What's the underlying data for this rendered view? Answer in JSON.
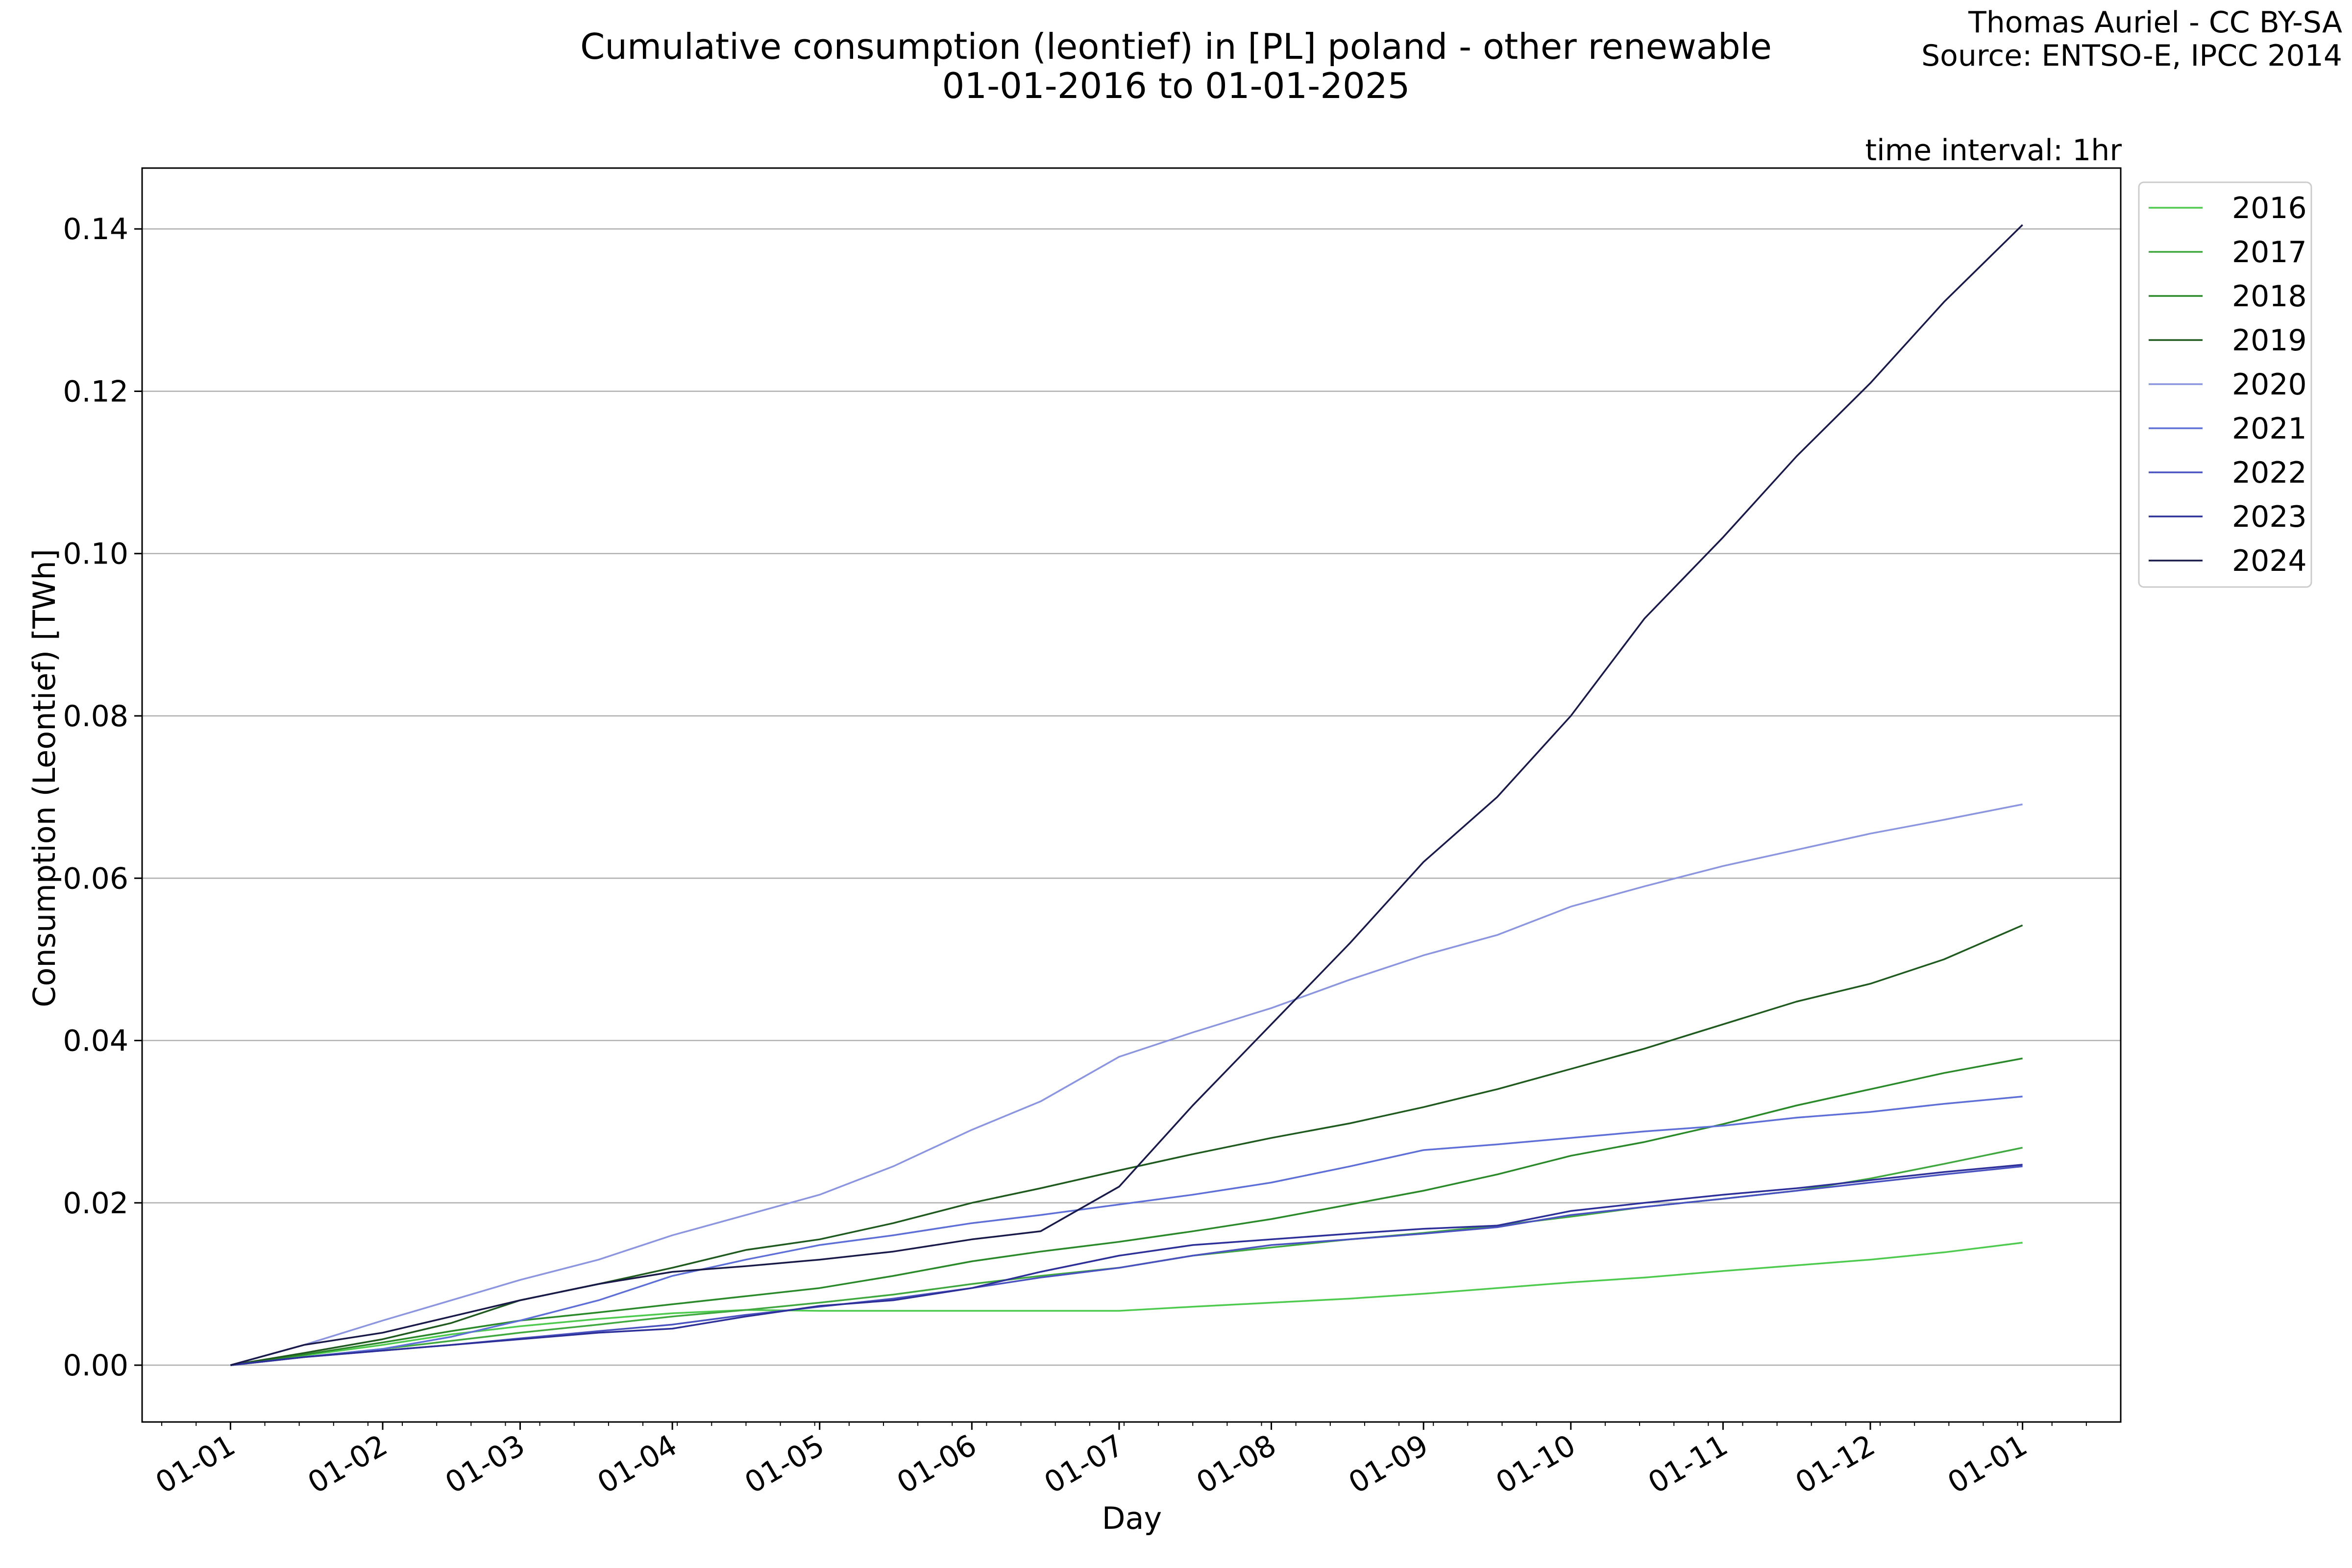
{
  "credit": {
    "author": "Thomas Auriel - CC BY-SA",
    "source": "Source: ENTSO-E, IPCC 2014"
  },
  "chart_data": {
    "type": "line",
    "title": "Cumulative consumption (leontief) in [PL] poland - other renewable",
    "subtitle": "01-01-2016 to 01-01-2025",
    "annotation": "time interval: 1hr",
    "xlabel": "Day",
    "ylabel": "Consumption (Leontief) [TWh]",
    "x_tick_labels": [
      "01-01",
      "01-02",
      "01-03",
      "01-04",
      "01-05",
      "01-06",
      "01-07",
      "01-08",
      "01-09",
      "01-10",
      "01-11",
      "01-12",
      "01-01"
    ],
    "x_ticks_day_of_year": [
      0,
      31,
      59,
      90,
      120,
      151,
      181,
      212,
      243,
      273,
      304,
      334,
      365
    ],
    "y_ticks": [
      0.0,
      0.02,
      0.04,
      0.06,
      0.08,
      0.1,
      0.12,
      0.14
    ],
    "y_tick_labels": [
      "0.00",
      "0.02",
      "0.04",
      "0.06",
      "0.08",
      "0.10",
      "0.12",
      "0.14"
    ],
    "xlim": [
      -18,
      385
    ],
    "ylim": [
      -0.007,
      0.1475
    ],
    "grid": "horizontal",
    "legend_position": "outside-right-top",
    "x_values_day_of_year": [
      0,
      15,
      31,
      45,
      59,
      75,
      90,
      105,
      120,
      135,
      151,
      165,
      181,
      196,
      212,
      228,
      243,
      258,
      273,
      288,
      304,
      319,
      334,
      349,
      365
    ],
    "series": [
      {
        "name": "2016",
        "color": "#4ecb4e",
        "values": [
          0,
          0.0012,
          0.0025,
          0.0038,
          0.0048,
          0.0057,
          0.0064,
          0.0068,
          0.0067,
          0.0067,
          0.0067,
          0.0067,
          0.0067,
          0.0072,
          0.0077,
          0.0082,
          0.0088,
          0.0095,
          0.0102,
          0.0108,
          0.0116,
          0.0123,
          0.013,
          0.0139,
          0.0151
        ]
      },
      {
        "name": "2017",
        "color": "#3fa83f",
        "values": [
          0,
          0.001,
          0.002,
          0.003,
          0.004,
          0.005,
          0.006,
          0.0068,
          0.0077,
          0.0087,
          0.01,
          0.011,
          0.012,
          0.0135,
          0.0145,
          0.0155,
          0.0163,
          0.0172,
          0.0183,
          0.0195,
          0.0205,
          0.0215,
          0.023,
          0.0248,
          0.0268
        ]
      },
      {
        "name": "2018",
        "color": "#2a8a2a",
        "values": [
          0,
          0.0013,
          0.0028,
          0.0042,
          0.0055,
          0.0065,
          0.0075,
          0.0085,
          0.0095,
          0.011,
          0.0128,
          0.014,
          0.0152,
          0.0165,
          0.018,
          0.0198,
          0.0215,
          0.0235,
          0.0258,
          0.0275,
          0.0297,
          0.032,
          0.034,
          0.036,
          0.0378
        ]
      },
      {
        "name": "2019",
        "color": "#1f5a1f",
        "values": [
          0,
          0.0015,
          0.0032,
          0.0052,
          0.008,
          0.01,
          0.012,
          0.0142,
          0.0155,
          0.0175,
          0.02,
          0.0218,
          0.024,
          0.026,
          0.028,
          0.0298,
          0.0318,
          0.034,
          0.0365,
          0.039,
          0.042,
          0.0448,
          0.047,
          0.05,
          0.0542
        ]
      },
      {
        "name": "2020",
        "color": "#8c95e0",
        "values": [
          0,
          0.0025,
          0.0055,
          0.008,
          0.0105,
          0.013,
          0.016,
          0.0185,
          0.021,
          0.0245,
          0.029,
          0.0325,
          0.038,
          0.041,
          0.044,
          0.0475,
          0.0505,
          0.053,
          0.0565,
          0.059,
          0.0615,
          0.0635,
          0.0655,
          0.0672,
          0.0691
        ]
      },
      {
        "name": "2021",
        "color": "#5f6fd8",
        "values": [
          0,
          0.001,
          0.002,
          0.0035,
          0.0055,
          0.008,
          0.011,
          0.013,
          0.0148,
          0.016,
          0.0175,
          0.0185,
          0.0198,
          0.021,
          0.0225,
          0.0245,
          0.0265,
          0.0272,
          0.028,
          0.0288,
          0.0295,
          0.0305,
          0.0312,
          0.0322,
          0.0331
        ]
      },
      {
        "name": "2022",
        "color": "#4a52c0",
        "values": [
          0,
          0.001,
          0.0018,
          0.0025,
          0.0033,
          0.0042,
          0.005,
          0.0062,
          0.0072,
          0.0082,
          0.0095,
          0.0108,
          0.012,
          0.0135,
          0.0148,
          0.0155,
          0.0162,
          0.017,
          0.0185,
          0.0195,
          0.0205,
          0.0215,
          0.0225,
          0.0235,
          0.0245
        ]
      },
      {
        "name": "2023",
        "color": "#2d3099",
        "values": [
          0,
          0.001,
          0.0018,
          0.0025,
          0.0032,
          0.004,
          0.0045,
          0.006,
          0.0073,
          0.008,
          0.0095,
          0.0115,
          0.0135,
          0.0148,
          0.0155,
          0.0162,
          0.0168,
          0.0172,
          0.019,
          0.02,
          0.021,
          0.0218,
          0.0228,
          0.0238,
          0.0247
        ]
      },
      {
        "name": "2024",
        "color": "#1a1a4a",
        "values": [
          0,
          0.0025,
          0.004,
          0.006,
          0.008,
          0.01,
          0.0115,
          0.0122,
          0.013,
          0.014,
          0.0155,
          0.0165,
          0.022,
          0.032,
          0.042,
          0.052,
          0.062,
          0.07,
          0.08,
          0.092,
          0.102,
          0.112,
          0.121,
          0.131,
          0.1405
        ]
      }
    ]
  }
}
